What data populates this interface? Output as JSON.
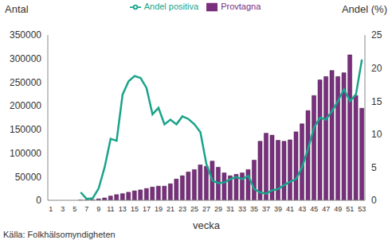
{
  "chart_data": {
    "type": "bar",
    "x_label": "vecka",
    "y_label": "Antal",
    "y2_label": "Andel (%)",
    "annotation": "Källa: Folkhälsomyndigheten",
    "categories": [
      "1",
      null,
      "3",
      null,
      "5",
      null,
      "7",
      null,
      "9",
      null,
      "11",
      null,
      "13",
      null,
      "15",
      null,
      "17",
      null,
      "19",
      null,
      "21",
      null,
      "23",
      null,
      "25",
      null,
      "27",
      null,
      "29",
      null,
      "31",
      null,
      "33",
      null,
      "35",
      null,
      "37",
      null,
      "39",
      null,
      "41",
      null,
      "43",
      null,
      "45",
      null,
      "47",
      null,
      "49",
      null,
      "51",
      null,
      "53"
    ],
    "ylim": [
      0,
      350000
    ],
    "yticks": [
      0,
      50000,
      100000,
      150000,
      200000,
      250000,
      300000,
      350000
    ],
    "y2lim": [
      0,
      25
    ],
    "y2ticks": [
      0,
      5,
      10,
      15,
      20,
      25
    ],
    "legend": "top",
    "series": [
      {
        "name": "Provtagna",
        "type": "bar",
        "color": "#7a2f7e",
        "values": [
          0,
          0,
          0,
          0,
          0,
          500,
          500,
          1000,
          3000,
          5000,
          9000,
          12000,
          14000,
          17000,
          20000,
          22000,
          25000,
          28000,
          30000,
          30000,
          35000,
          45000,
          52000,
          60000,
          65000,
          75000,
          72000,
          83000,
          70000,
          58000,
          52000,
          55000,
          58000,
          65000,
          85000,
          125000,
          142000,
          138000,
          127000,
          125000,
          128000,
          145000,
          162000,
          190000,
          222000,
          255000,
          262000,
          275000,
          262000,
          270000,
          308000,
          222000,
          195000
        ]
      },
      {
        "name": "Andel positiva",
        "type": "line",
        "axis": "y2",
        "color": "#1aa38a",
        "values": [
          null,
          null,
          null,
          null,
          null,
          1.2,
          0.2,
          0.3,
          1.8,
          5,
          9.3,
          9,
          16,
          18,
          18.8,
          18.5,
          17,
          13,
          14,
          11.5,
          12.2,
          11.5,
          12.7,
          12.3,
          11.5,
          10.3,
          5.5,
          3,
          2.6,
          2.7,
          3.2,
          3.5,
          3.2,
          3.7,
          1.7,
          1.2,
          1,
          1.5,
          1.7,
          2.3,
          2.8,
          3.2,
          5,
          7.8,
          11,
          12.5,
          12.2,
          13.5,
          15,
          16.8,
          15,
          16,
          21.3
        ]
      }
    ]
  }
}
